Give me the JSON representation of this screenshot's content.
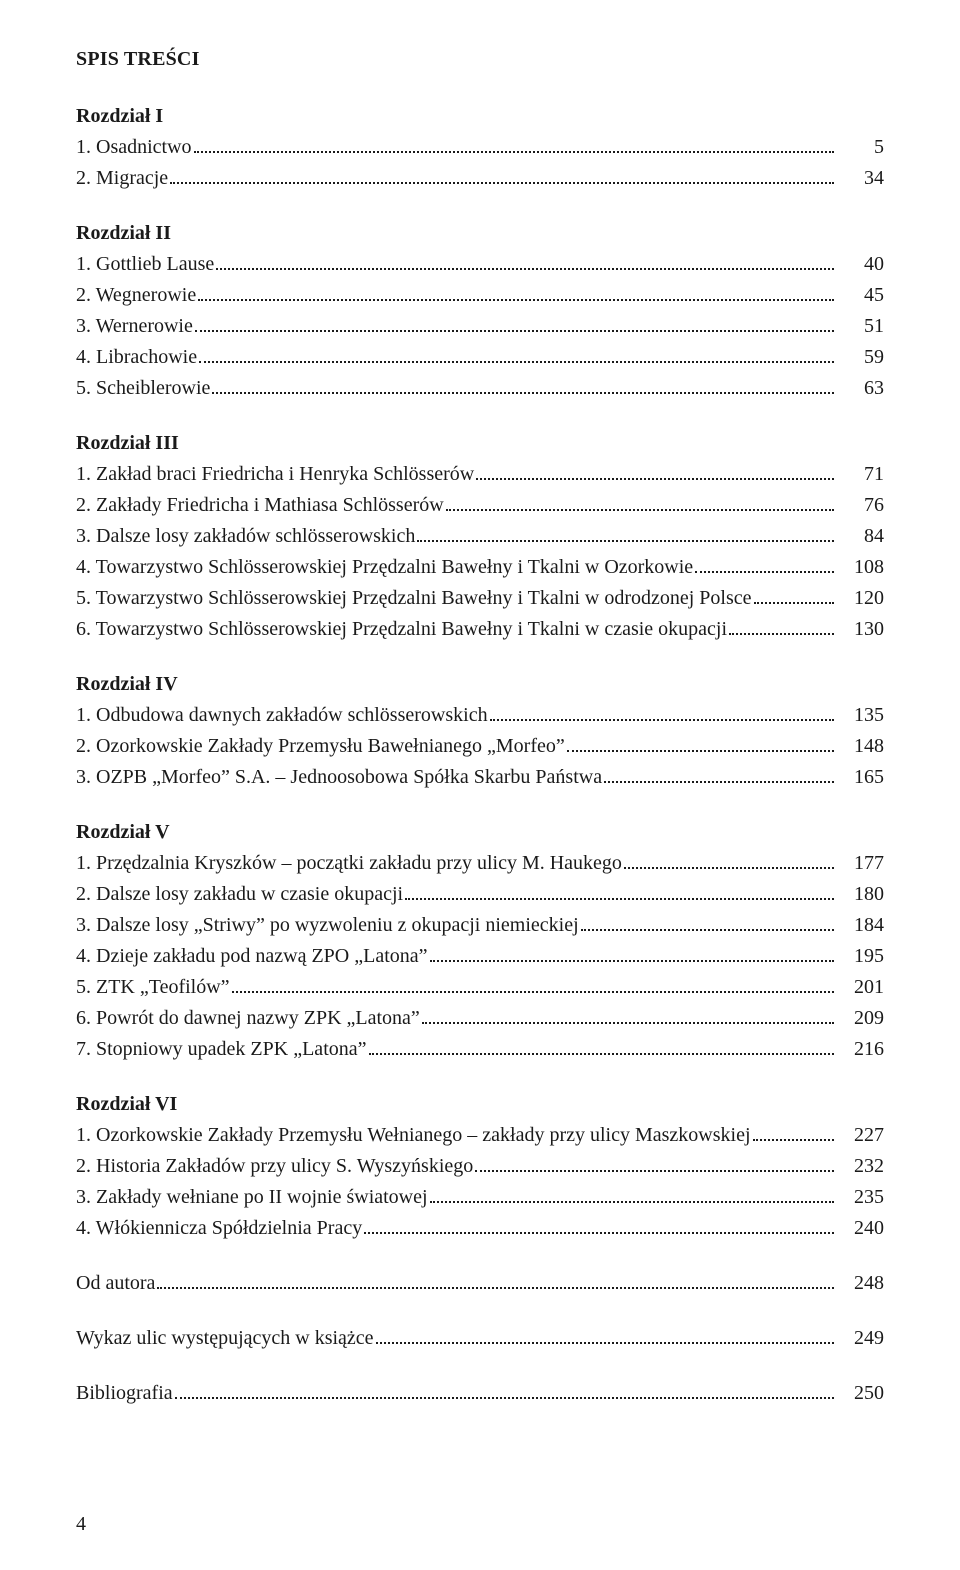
{
  "title": "SPIS TREŚCI",
  "chapters": [
    {
      "heading": "Rozdział I",
      "entries": [
        {
          "label": "1. Osadnictwo",
          "page": "5"
        },
        {
          "label": "2. Migracje",
          "page": "34"
        }
      ]
    },
    {
      "heading": "Rozdział II",
      "entries": [
        {
          "label": "1. Gottlieb Lause",
          "page": "40"
        },
        {
          "label": "2. Wegnerowie",
          "page": "45"
        },
        {
          "label": "3. Wernerowie",
          "page": "51"
        },
        {
          "label": "4. Librachowie",
          "page": "59"
        },
        {
          "label": "5. Scheiblerowie",
          "page": "63"
        }
      ]
    },
    {
      "heading": "Rozdział III",
      "entries": [
        {
          "label": "1. Zakład braci Friedricha i Henryka Schlösserów",
          "page": "71"
        },
        {
          "label": "2. Zakłady Friedricha i Mathiasa Schlösserów",
          "page": "76"
        },
        {
          "label": "3. Dalsze losy zakładów schlösserowskich",
          "page": "84"
        },
        {
          "label": "4. Towarzystwo Schlösserowskiej Przędzalni Bawełny i Tkalni w Ozorkowie",
          "page": "108"
        },
        {
          "label": "5. Towarzystwo Schlösserowskiej Przędzalni Bawełny i Tkalni w odrodzonej Polsce",
          "page": "120"
        },
        {
          "label": "6. Towarzystwo Schlösserowskiej Przędzalni Bawełny i Tkalni w czasie okupacji",
          "page": "130"
        }
      ]
    },
    {
      "heading": "Rozdział IV",
      "entries": [
        {
          "label": "1. Odbudowa dawnych zakładów schlösserowskich",
          "page": "135"
        },
        {
          "label": "2. Ozorkowskie Zakłady Przemysłu Bawełnianego „Morfeo”",
          "page": "148"
        },
        {
          "label": "3. OZPB „Morfeo” S.A. – Jednoosobowa Spółka Skarbu Państwa",
          "page": "165"
        }
      ]
    },
    {
      "heading": "Rozdział V",
      "entries": [
        {
          "label": "1. Przędzalnia Kryszków – początki zakładu przy ulicy M. Haukego",
          "page": "177"
        },
        {
          "label": "2. Dalsze losy zakładu w czasie okupacji",
          "page": "180"
        },
        {
          "label": "3. Dalsze losy „Striwy” po wyzwoleniu z okupacji niemieckiej",
          "page": "184"
        },
        {
          "label": "4. Dzieje zakładu pod nazwą ZPO „Latona”",
          "page": "195"
        },
        {
          "label": "5. ZTK „Teofilów”",
          "page": "201"
        },
        {
          "label": "6. Powrót do dawnej nazwy ZPK „Latona”",
          "page": "209"
        },
        {
          "label": "7. Stopniowy upadek ZPK „Latona”",
          "page": "216"
        }
      ]
    },
    {
      "heading": "Rozdział VI",
      "entries": [
        {
          "label": "1. Ozorkowskie Zakłady Przemysłu Wełnianego – zakłady przy ulicy Maszkowskiej",
          "page": "227"
        },
        {
          "label": "2. Historia Zakładów przy ulicy S. Wyszyńskiego",
          "page": "232"
        },
        {
          "label": "3. Zakłady wełniane po II wojnie światowej",
          "page": "235"
        },
        {
          "label": "4. Włókiennicza Spółdzielnia Pracy",
          "page": "240"
        }
      ]
    }
  ],
  "trailing": [
    {
      "label": "Od autora",
      "page": "248"
    },
    {
      "label": "Wykaz ulic występujących w książce",
      "page": "249"
    },
    {
      "label": "Bibliografia",
      "page": "250"
    }
  ],
  "page_number": "4",
  "colors": {
    "text": "#1a1a1a",
    "background": "#ffffff",
    "leader": "#1a1a1a"
  },
  "typography": {
    "body_fontsize_pt": 15,
    "title_weight": 700,
    "chapter_weight": 700,
    "family": "Minion Pro / Times New Roman serif"
  }
}
